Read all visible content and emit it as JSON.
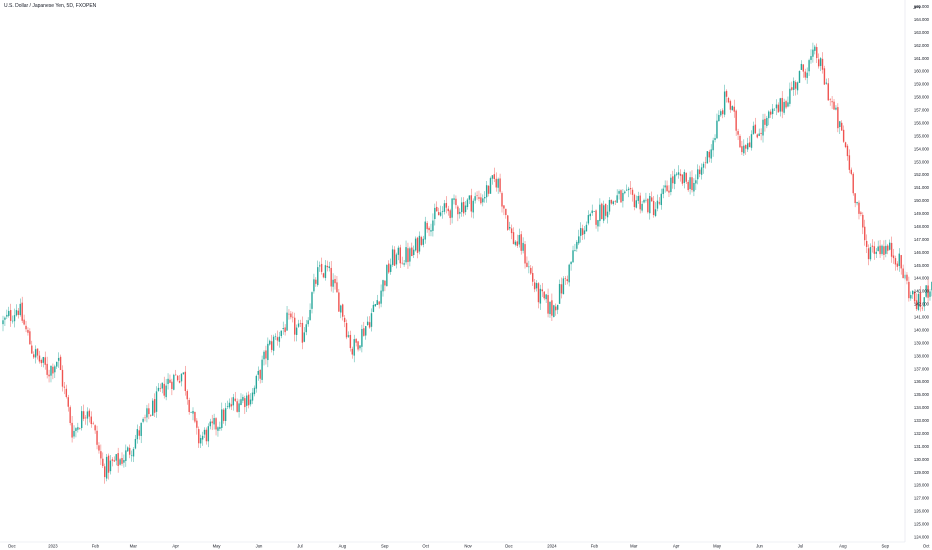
{
  "header": {
    "title": "U.S. Dollar / Japanese Yen, 5D, FXOPEN"
  },
  "chart_data": {
    "type": "candlestick",
    "title": "U.S. Dollar / Japanese Yen, 5D, FXOPEN",
    "currency_label": "JPY",
    "y_axis_position": "right",
    "ylim": [
      124,
      165
    ],
    "y_ticks": [
      "124.000",
      "125.000",
      "126.000",
      "127.000",
      "128.000",
      "129.000",
      "130.000",
      "131.000",
      "132.000",
      "133.000",
      "134.000",
      "135.000",
      "136.000",
      "137.000",
      "138.000",
      "139.000",
      "140.000",
      "141.000",
      "142.000",
      "143.000",
      "144.000",
      "145.000",
      "146.000",
      "147.000",
      "148.000",
      "149.000",
      "150.000",
      "151.000",
      "152.000",
      "153.000",
      "154.000",
      "155.000",
      "156.000",
      "157.000",
      "158.000",
      "159.000",
      "160.000",
      "161.000",
      "162.000",
      "163.000",
      "164.000",
      "165.000"
    ],
    "x_tick_labels": [
      "Dec",
      "2023",
      "Feb",
      "Mar",
      "Apr",
      "May",
      "Jun",
      "Jul",
      "Aug",
      "Sep",
      "Oct",
      "Nov",
      "Dec",
      "2024",
      "Feb",
      "Mar",
      "Apr",
      "May",
      "Jun",
      "Jul",
      "Aug",
      "Sep",
      "Oct",
      "21"
    ],
    "grid": false,
    "colors": {
      "up": "#26a69a",
      "down": "#ef5350",
      "axis_text": "#131722"
    },
    "close_path": [
      [
        2022.9,
        140.5
      ],
      [
        2022.93,
        141.8
      ],
      [
        2022.96,
        138.3
      ],
      [
        2022.99,
        136.8
      ],
      [
        2023.01,
        137.8
      ],
      [
        2023.04,
        132.0
      ],
      [
        2023.07,
        134.2
      ],
      [
        2023.1,
        129.3
      ],
      [
        2023.13,
        129.8
      ],
      [
        2023.15,
        130.5
      ],
      [
        2023.19,
        133.3
      ],
      [
        2023.23,
        136.0
      ],
      [
        2023.26,
        136.7
      ],
      [
        2023.29,
        131.5
      ],
      [
        2023.32,
        132.3
      ],
      [
        2023.36,
        134.3
      ],
      [
        2023.4,
        135.0
      ],
      [
        2023.43,
        138.5
      ],
      [
        2023.47,
        140.6
      ],
      [
        2023.5,
        139.6
      ],
      [
        2023.53,
        144.3
      ],
      [
        2023.55,
        144.6
      ],
      [
        2023.58,
        141.5
      ],
      [
        2023.6,
        138.4
      ],
      [
        2023.64,
        141.3
      ],
      [
        2023.68,
        145.5
      ],
      [
        2023.72,
        145.8
      ],
      [
        2023.75,
        148.3
      ],
      [
        2023.79,
        149.3
      ],
      [
        2023.83,
        149.8
      ],
      [
        2023.86,
        150.3
      ],
      [
        2023.89,
        151.7
      ],
      [
        2023.92,
        147.1
      ],
      [
        2023.94,
        146.4
      ],
      [
        2023.97,
        142.8
      ],
      [
        2024.0,
        141.5
      ],
      [
        2024.03,
        144.2
      ],
      [
        2024.06,
        147.8
      ],
      [
        2024.1,
        149.3
      ],
      [
        2024.13,
        150.2
      ],
      [
        2024.17,
        150.1
      ],
      [
        2024.21,
        149.4
      ],
      [
        2024.24,
        151.6
      ],
      [
        2024.29,
        151.4
      ],
      [
        2024.32,
        154.3
      ],
      [
        2024.35,
        158.2
      ],
      [
        2024.38,
        154.3
      ],
      [
        2024.42,
        155.7
      ],
      [
        2024.46,
        157.3
      ],
      [
        2024.5,
        159.9
      ],
      [
        2024.53,
        161.3
      ],
      [
        2024.56,
        157.6
      ],
      [
        2024.59,
        153.9
      ],
      [
        2024.63,
        146.2
      ],
      [
        2024.66,
        146.5
      ],
      [
        2024.69,
        145.8
      ],
      [
        2024.72,
        142.6
      ],
      [
        2024.74,
        141.8
      ],
      [
        2024.76,
        143.8
      ],
      [
        2024.78,
        148.5
      ]
    ]
  }
}
